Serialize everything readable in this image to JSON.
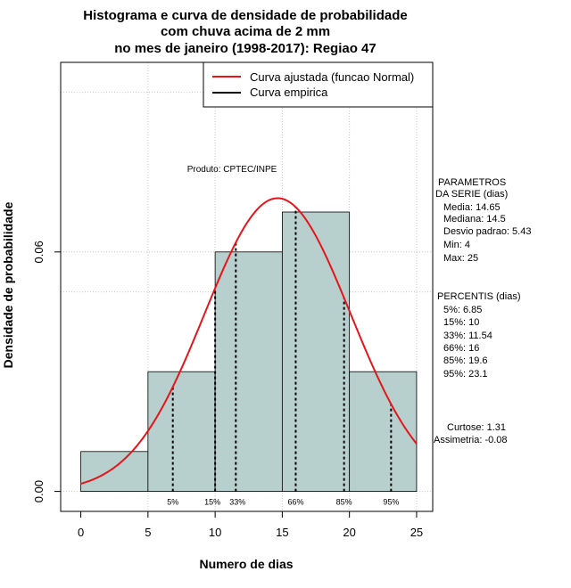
{
  "chart_data": {
    "type": "bar",
    "title_lines": [
      "Histograma e curva de densidade de probabilidade",
      "com chuva acima de 2 mm",
      "no mes de janeiro (1998-2017): Regiao 47"
    ],
    "xlabel": "Numero de dias",
    "ylabel": "Densidade de probabilidade",
    "xlim": [
      -1.5,
      26.2
    ],
    "ylim": [
      -0.005,
      0.1075
    ],
    "x_ticks": [
      0,
      5,
      10,
      15,
      20,
      25
    ],
    "y_ticks": [
      0.0,
      0.06
    ],
    "y_tick_labels": [
      "0.00",
      "0.06"
    ],
    "grid": true,
    "grid_x": [
      5,
      10,
      15,
      20,
      25
    ],
    "grid_y": [
      0.0,
      0.06
    ],
    "grid_y_extra": [
      0.1,
      0.05
    ],
    "bins": [
      {
        "from": 0,
        "to": 5,
        "density": 0.01
      },
      {
        "from": 5,
        "to": 10,
        "density": 0.03
      },
      {
        "from": 10,
        "to": 15,
        "density": 0.06
      },
      {
        "from": 15,
        "to": 20,
        "density": 0.07
      },
      {
        "from": 20,
        "to": 25,
        "density": 0.03
      }
    ],
    "normal_fit": {
      "mean": 14.65,
      "sd": 5.43,
      "x_range": [
        0,
        25
      ]
    },
    "percentile_lines": [
      {
        "label": "5%",
        "x": 6.85
      },
      {
        "label": "15%",
        "x": 10
      },
      {
        "label": "33%",
        "x": 11.54
      },
      {
        "label": "66%",
        "x": 16
      },
      {
        "label": "85%",
        "x": 19.6
      },
      {
        "label": "95%",
        "x": 23.1
      }
    ],
    "legend": {
      "placement": "top-right",
      "entries": [
        {
          "label": "Curva ajustada (funcao Normal)",
          "color": "#e8141b"
        },
        {
          "label": "Curva empirica",
          "color": "#000000"
        }
      ]
    },
    "annotation": "Produto: CPTEC/INPE",
    "colors": {
      "bar_fill": "#b7cfcd",
      "fit_line": "#e8141b",
      "grid": "#c8c8c8"
    }
  },
  "side_panel": {
    "parametros_title": [
      "PARAMETROS",
      "DA SERIE (dias)"
    ],
    "parametros": [
      "Media: 14.65",
      "Mediana: 14.5",
      "Desvio padrao: 5.43",
      "Min: 4",
      "Max: 25"
    ],
    "percentis_title": "PERCENTIS (dias)",
    "percentis": [
      "5%: 6.85",
      "15%: 10",
      "33%: 11.54",
      "66%: 16",
      "85%: 19.6",
      "95%: 23.1"
    ],
    "curtose": "Curtose: 1.31",
    "assimetria": "Assimetria: -0.08"
  }
}
